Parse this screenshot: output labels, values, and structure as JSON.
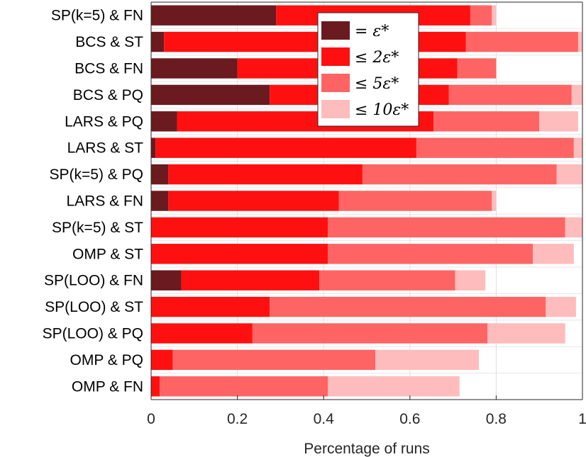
{
  "chart_data": {
    "type": "bar",
    "orientation": "horizontal",
    "stacked": true,
    "xlabel": "Percentage of runs",
    "xlim": [
      0,
      1
    ],
    "xticks": [
      0,
      0.2,
      0.4,
      0.6,
      0.8,
      1
    ],
    "xtick_labels": [
      "0",
      "0.2",
      "0.4",
      "0.6",
      "0.8",
      "1"
    ],
    "grid": true,
    "legend_position": "top-center",
    "categories": [
      "SP(k=5) & FN",
      "BCS & ST",
      "BCS & FN",
      "BCS & PQ",
      "LARS & PQ",
      "LARS & ST",
      "SP(k=5) & PQ",
      "LARS & FN",
      "SP(k=5) & ST",
      "OMP & ST",
      "SP(LOO) & FN",
      "SP(LOO) & ST",
      "SP(LOO) & PQ",
      "OMP & PQ",
      "OMP & FN"
    ],
    "series": [
      {
        "name": "= ε*",
        "color": "#6b1a1f",
        "values": [
          0.29,
          0.03,
          0.2,
          0.275,
          0.06,
          0.01,
          0.04,
          0.04,
          0,
          0,
          0.07,
          0,
          0,
          0,
          0
        ]
      },
      {
        "name": "≤ 2ε*",
        "color": "#ff1010",
        "values": [
          0.45,
          0.7,
          0.51,
          0.415,
          0.595,
          0.605,
          0.45,
          0.395,
          0.41,
          0.41,
          0.32,
          0.275,
          0.235,
          0.05,
          0.02
        ]
      },
      {
        "name": "≤ 5ε*",
        "color": "#ff6464",
        "values": [
          0.05,
          0.26,
          0.09,
          0.285,
          0.245,
          0.365,
          0.45,
          0.355,
          0.55,
          0.475,
          0.315,
          0.64,
          0.545,
          0.47,
          0.39
        ]
      },
      {
        "name": "≤ 10ε*",
        "color": "#ffbcbc",
        "values": [
          0.01,
          0.01,
          0,
          0.025,
          0.09,
          0.02,
          0.06,
          0.01,
          0.04,
          0.095,
          0.07,
          0.07,
          0.18,
          0.24,
          0.305
        ]
      }
    ]
  }
}
